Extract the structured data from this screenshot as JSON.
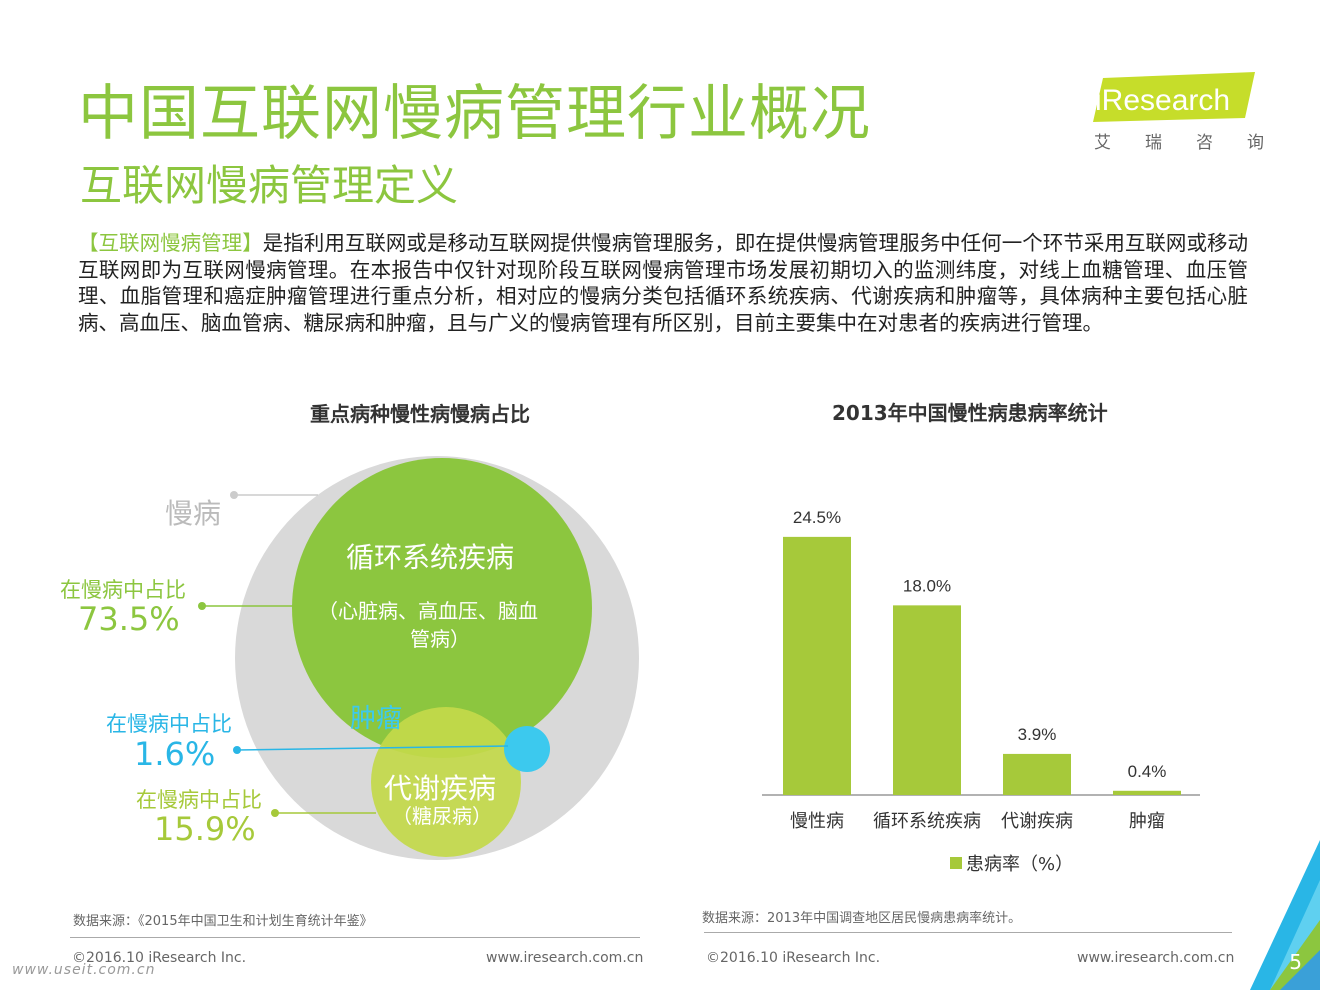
{
  "header": {
    "title": "中国互联网慢病管理行业概况",
    "subtitle": "互联网慢病管理定义"
  },
  "logo": {
    "text": "iResearch",
    "cn": [
      "艾",
      "瑞",
      "咨",
      "询"
    ],
    "colors": {
      "green": "#c6dd2a",
      "dark": "#3a3a3a"
    }
  },
  "intro": {
    "highlight": "【互联网慢病管理】",
    "body": "是指利用互联网或是移动互联网提供慢病管理服务，即在提供慢病管理服务中任何一个环节采用互联网或移动互联网即为互联网慢病管理。在本报告中仅针对现阶段互联网慢病管理市场发展初期切入的监测纬度，对线上血糖管理、血压管理、血脂管理和癌症肿瘤管理进行重点分析，相对应的慢病分类包括循环系统疾病、代谢疾病和肿瘤等，具体病种主要包括心脏病、高血压、脑血管病、糖尿病和肿瘤，且与广义的慢病管理有所区别，目前主要集中在对患者的疾病进行管理。"
  },
  "venn": {
    "title": "重点病种慢性病慢病占比",
    "outer_label": "慢病",
    "circulatory": {
      "name": "循环系统疾病",
      "detail_line1": "（心脏病、高血压、脑血",
      "detail_line2": "管病）",
      "share_label": "在慢病中占比",
      "share": "73.5%",
      "share_value": 73.5
    },
    "tumor": {
      "name": "肿瘤",
      "share_label": "在慢病中占比",
      "share": "1.6%",
      "share_value": 1.6
    },
    "metabolic": {
      "name": "代谢疾病",
      "detail": "（糖尿病）",
      "share_label": "在慢病中占比",
      "share": "15.9%",
      "share_value": 15.9
    },
    "colors": {
      "outer": "#d9d9d9",
      "circulatory": "#8cc63f",
      "metabolic": "#c3d94a",
      "tumor": "#3cc9ee",
      "share_green": "#8cc63f",
      "share_blue": "#29b6e6",
      "share_light": "#a6c93a"
    },
    "source": "数据来源：《2015年中国卫生和计划生育统计年鉴》"
  },
  "chart_data": {
    "type": "bar",
    "title": "2013年中国慢性病患病率统计",
    "categories": [
      "慢性病",
      "循环系统疾病",
      "代谢疾病",
      "肿瘤"
    ],
    "series": [
      {
        "name": "患病率（%）",
        "values": [
          24.5,
          18.0,
          3.9,
          0.4
        ]
      }
    ],
    "data_labels": [
      "24.5%",
      "18.0%",
      "3.9%",
      "0.4%"
    ],
    "ylim": [
      0,
      28
    ],
    "grid": false,
    "legend": "bottom",
    "color": "#a6c93a",
    "source": "数据来源：2013年中国调查地区居民慢病患病率统计。"
  },
  "footer": {
    "left_copyright": "©2016.10 iResearch Inc.",
    "left_url": "www.iresearch.com.cn",
    "right_copyright": "©2016.10 iResearch Inc.",
    "right_url": "www.iresearch.com.cn",
    "page": "5",
    "watermark": "www.useit.com.cn"
  }
}
